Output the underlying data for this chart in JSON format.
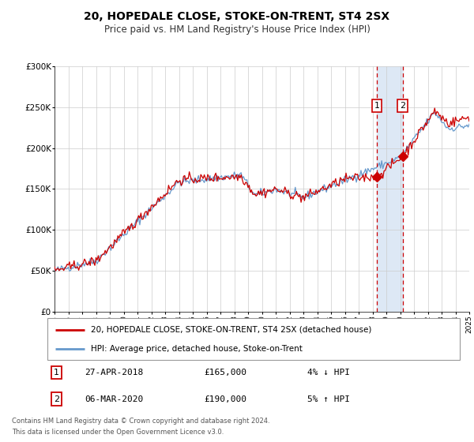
{
  "title": "20, HOPEDALE CLOSE, STOKE-ON-TRENT, ST4 2SX",
  "subtitle": "Price paid vs. HM Land Registry's House Price Index (HPI)",
  "xmin": 1995,
  "xmax": 2025,
  "ymin": 0,
  "ymax": 300000,
  "yticks": [
    0,
    50000,
    100000,
    150000,
    200000,
    250000,
    300000
  ],
  "ytick_labels": [
    "£0",
    "£50K",
    "£100K",
    "£150K",
    "£200K",
    "£250K",
    "£300K"
  ],
  "sale1_x": 2018.32,
  "sale1_y": 165000,
  "sale2_x": 2020.18,
  "sale2_y": 190000,
  "sale1_label": "27-APR-2018",
  "sale2_label": "06-MAR-2020",
  "sale1_price": "£165,000",
  "sale2_price": "£190,000",
  "sale1_hpi": "4% ↓ HPI",
  "sale2_hpi": "5% ↑ HPI",
  "price_line_color": "#cc0000",
  "hpi_line_color": "#6699cc",
  "background_shade_color": "#dde8f5",
  "vline_color": "#cc0000",
  "grid_color": "#cccccc",
  "legend1": "20, HOPEDALE CLOSE, STOKE-ON-TRENT, ST4 2SX (detached house)",
  "legend2": "HPI: Average price, detached house, Stoke-on-Trent",
  "footer1": "Contains HM Land Registry data © Crown copyright and database right 2024.",
  "footer2": "This data is licensed under the Open Government Licence v3.0."
}
